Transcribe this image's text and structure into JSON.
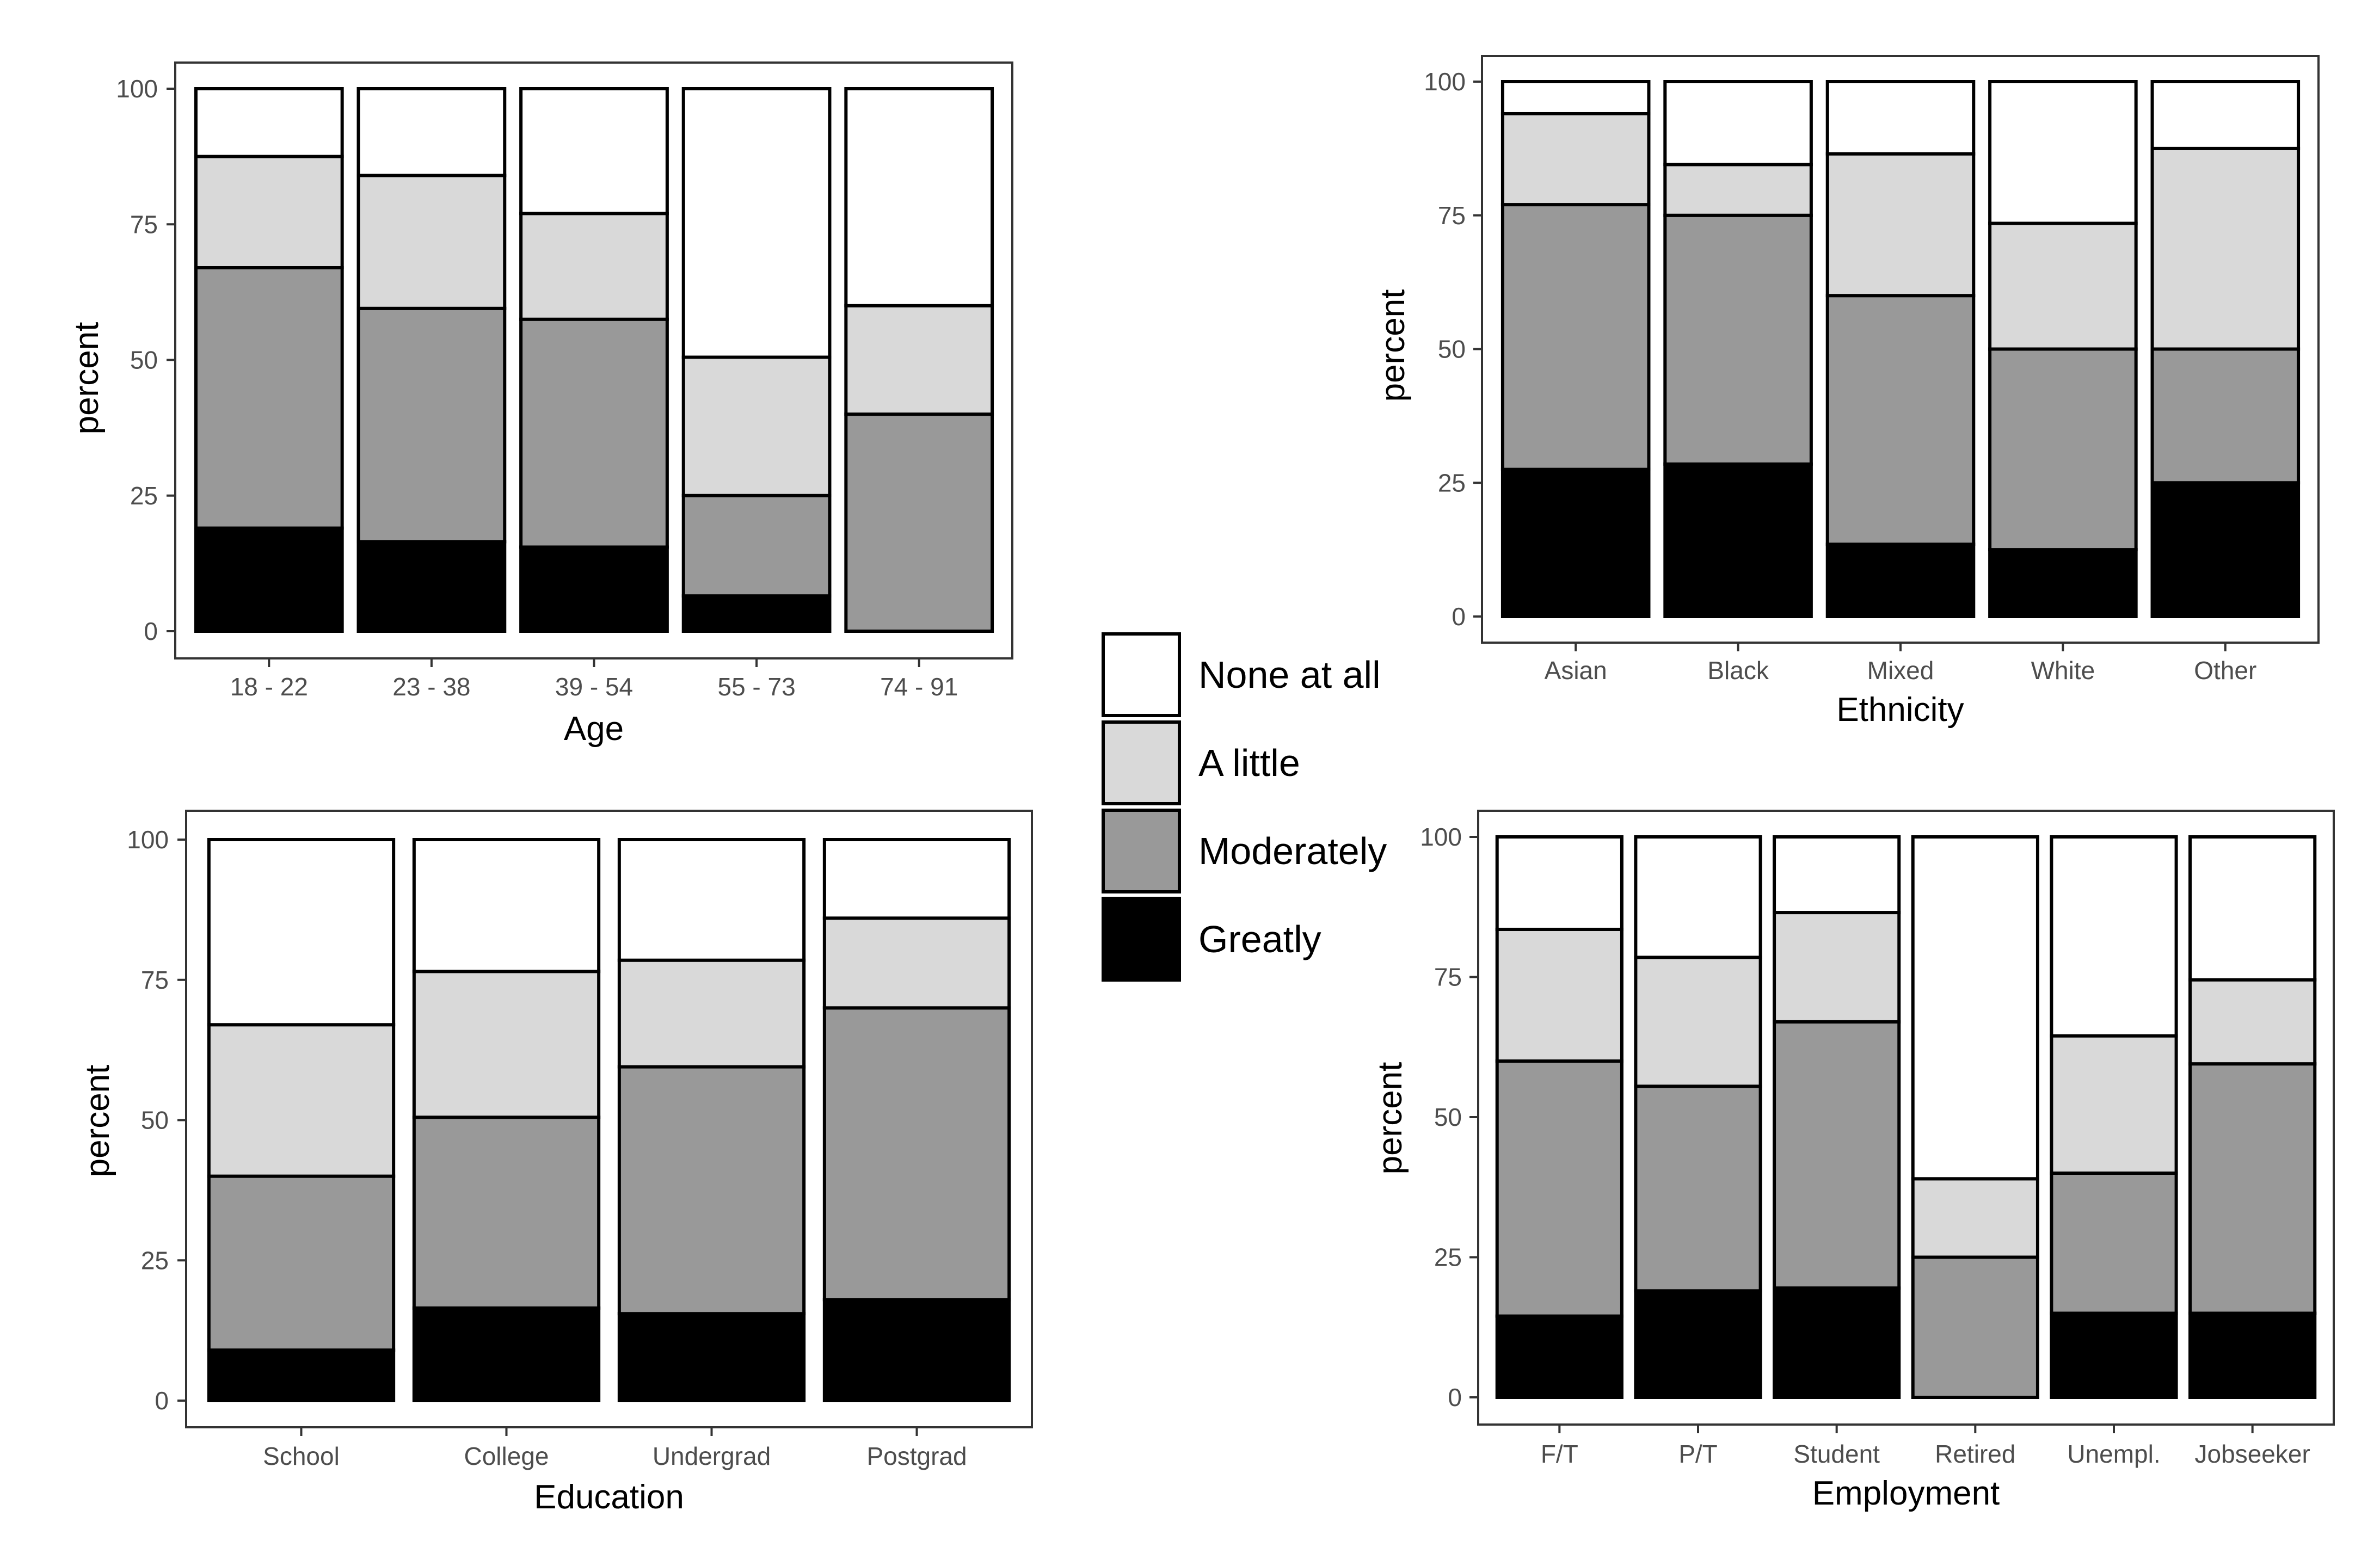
{
  "figure": {
    "legend": {
      "entries": [
        {
          "label": "None at all",
          "color": "#ffffff"
        },
        {
          "label": "A little",
          "color": "#d9d9d9"
        },
        {
          "label": "Moderately",
          "color": "#999999"
        },
        {
          "label": "Greatly",
          "color": "#000000"
        }
      ]
    }
  },
  "chart_data": [
    {
      "type": "bar",
      "stacked": true,
      "title": "",
      "xlabel": "Age",
      "ylabel": "percent",
      "ylim": [
        0,
        100
      ],
      "yticks": [
        0,
        25,
        50,
        75,
        100
      ],
      "categories": [
        "18 - 22",
        "23 - 38",
        "39 - 54",
        "55 - 73",
        "74 - 91"
      ],
      "series": [
        {
          "name": "Greatly",
          "color": "#000000",
          "values": [
            19,
            16.5,
            15.5,
            6.5,
            0
          ]
        },
        {
          "name": "Moderately",
          "color": "#999999",
          "values": [
            48,
            43,
            42,
            18.5,
            40
          ]
        },
        {
          "name": "A little",
          "color": "#d9d9d9",
          "values": [
            20.5,
            24.5,
            19.5,
            25.5,
            20
          ]
        },
        {
          "name": "None at all",
          "color": "#ffffff",
          "values": [
            12.5,
            16,
            23,
            49.5,
            40
          ]
        }
      ]
    },
    {
      "type": "bar",
      "stacked": true,
      "title": "",
      "xlabel": "Ethnicity",
      "ylabel": "percent",
      "ylim": [
        0,
        100
      ],
      "yticks": [
        0,
        25,
        50,
        75,
        100
      ],
      "categories": [
        "Asian",
        "Black",
        "Mixed",
        "White",
        "Other"
      ],
      "series": [
        {
          "name": "Greatly",
          "color": "#000000",
          "values": [
            27.5,
            28.5,
            13.5,
            12.5,
            25
          ]
        },
        {
          "name": "Moderately",
          "color": "#999999",
          "values": [
            49.5,
            46.5,
            46.5,
            37.5,
            25
          ]
        },
        {
          "name": "A little",
          "color": "#d9d9d9",
          "values": [
            17,
            9.5,
            26.5,
            23.5,
            37.5
          ]
        },
        {
          "name": "None at all",
          "color": "#ffffff",
          "values": [
            6,
            15.5,
            13.5,
            26.5,
            12.5
          ]
        }
      ]
    },
    {
      "type": "bar",
      "stacked": true,
      "title": "",
      "xlabel": "Education",
      "ylabel": "percent",
      "ylim": [
        0,
        100
      ],
      "yticks": [
        0,
        25,
        50,
        75,
        100
      ],
      "categories": [
        "School",
        "College",
        "Undergrad",
        "Postgrad"
      ],
      "series": [
        {
          "name": "Greatly",
          "color": "#000000",
          "values": [
            9,
            16.5,
            15.5,
            18
          ]
        },
        {
          "name": "Moderately",
          "color": "#999999",
          "values": [
            31,
            34,
            44,
            52
          ]
        },
        {
          "name": "A little",
          "color": "#d9d9d9",
          "values": [
            27,
            26,
            19,
            16
          ]
        },
        {
          "name": "None at all",
          "color": "#ffffff",
          "values": [
            33,
            23.5,
            21.5,
            14
          ]
        }
      ]
    },
    {
      "type": "bar",
      "stacked": true,
      "title": "",
      "xlabel": "Employment",
      "ylabel": "percent",
      "ylim": [
        0,
        100
      ],
      "yticks": [
        0,
        25,
        50,
        75,
        100
      ],
      "categories": [
        "F/T",
        "P/T",
        "Student",
        "Retired",
        "Unempl.",
        "Jobseeker"
      ],
      "series": [
        {
          "name": "Greatly",
          "color": "#000000",
          "values": [
            14.5,
            19,
            19.5,
            0,
            15,
            15
          ]
        },
        {
          "name": "Moderately",
          "color": "#999999",
          "values": [
            45.5,
            36.5,
            47.5,
            25,
            25,
            44.5
          ]
        },
        {
          "name": "A little",
          "color": "#d9d9d9",
          "values": [
            23.5,
            23,
            19.5,
            14,
            24.5,
            15
          ]
        },
        {
          "name": "None at all",
          "color": "#ffffff",
          "values": [
            16.5,
            21.5,
            13.5,
            61,
            35.5,
            25.5
          ]
        }
      ]
    }
  ]
}
